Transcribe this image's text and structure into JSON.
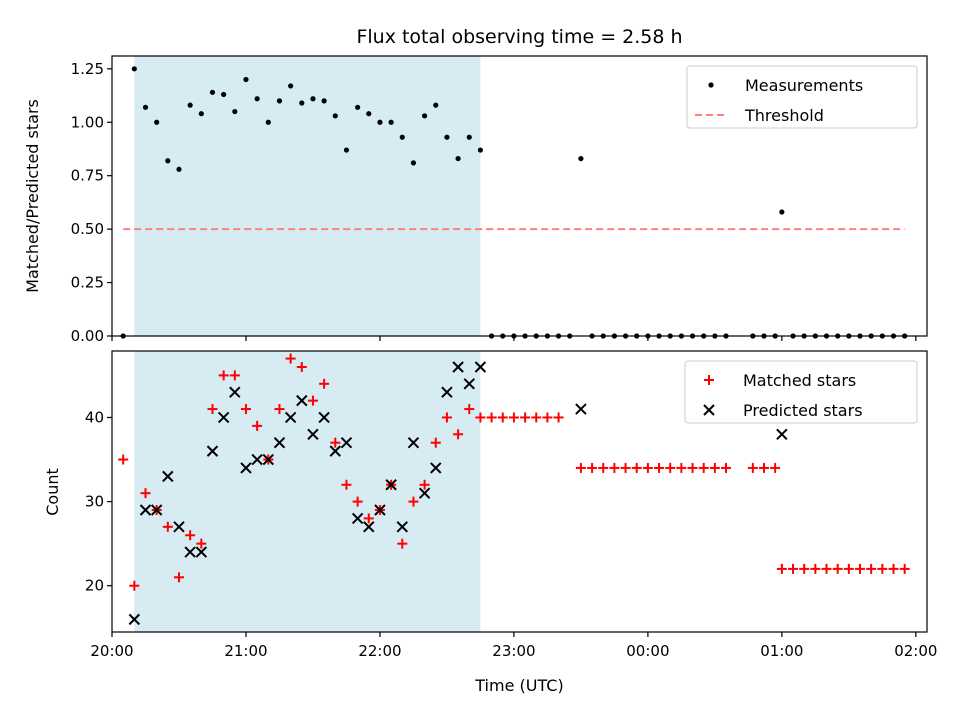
{
  "chart_data": [
    {
      "type": "scatter",
      "title": "Flux total observing time = 2.58 h",
      "xlabel": "",
      "ylabel": "Matched/Predicted stars",
      "xlim": [
        "20:00",
        "02:05"
      ],
      "ylim": [
        0,
        1.31
      ],
      "yticks": [
        "0.00",
        "0.25",
        "0.50",
        "0.75",
        "1.00",
        "1.25"
      ],
      "shaded_span": {
        "start": "20:10",
        "end": "22:45"
      },
      "legend_position": "top-right",
      "series": [
        {
          "name": "Measurements",
          "marker": "dot",
          "color": "#000000",
          "points": [
            [
              "20:05",
              0.0
            ],
            [
              "20:10",
              1.25
            ],
            [
              "20:15",
              1.07
            ],
            [
              "20:20",
              1.0
            ],
            [
              "20:25",
              0.82
            ],
            [
              "20:30",
              0.78
            ],
            [
              "20:35",
              1.08
            ],
            [
              "20:40",
              1.04
            ],
            [
              "20:45",
              1.14
            ],
            [
              "20:50",
              1.13
            ],
            [
              "20:55",
              1.05
            ],
            [
              "21:00",
              1.2
            ],
            [
              "21:05",
              1.11
            ],
            [
              "21:10",
              1.0
            ],
            [
              "21:15",
              1.1
            ],
            [
              "21:20",
              1.17
            ],
            [
              "21:25",
              1.09
            ],
            [
              "21:30",
              1.11
            ],
            [
              "21:35",
              1.1
            ],
            [
              "21:40",
              1.03
            ],
            [
              "21:45",
              0.87
            ],
            [
              "21:50",
              1.07
            ],
            [
              "21:55",
              1.04
            ],
            [
              "22:00",
              1.0
            ],
            [
              "22:05",
              1.0
            ],
            [
              "22:10",
              0.93
            ],
            [
              "22:15",
              0.81
            ],
            [
              "22:20",
              1.03
            ],
            [
              "22:25",
              1.08
            ],
            [
              "22:30",
              0.93
            ],
            [
              "22:35",
              0.83
            ],
            [
              "22:40",
              0.93
            ],
            [
              "22:45",
              0.87
            ],
            [
              "22:50",
              0.0
            ],
            [
              "22:55",
              0.0
            ],
            [
              "23:00",
              0.0
            ],
            [
              "23:05",
              0.0
            ],
            [
              "23:10",
              0.0
            ],
            [
              "23:15",
              0.0
            ],
            [
              "23:20",
              0.0
            ],
            [
              "23:25",
              0.0
            ],
            [
              "23:30",
              0.83
            ],
            [
              "23:35",
              0.0
            ],
            [
              "23:40",
              0.0
            ],
            [
              "23:45",
              0.0
            ],
            [
              "23:50",
              0.0
            ],
            [
              "23:55",
              0.0
            ],
            [
              "00:00",
              0.0
            ],
            [
              "00:05",
              0.0
            ],
            [
              "00:10",
              0.0
            ],
            [
              "00:15",
              0.0
            ],
            [
              "00:20",
              0.0
            ],
            [
              "00:25",
              0.0
            ],
            [
              "00:30",
              0.0
            ],
            [
              "00:35",
              0.0
            ],
            [
              "00:47",
              0.0
            ],
            [
              "00:52",
              0.0
            ],
            [
              "00:57",
              0.0
            ],
            [
              "01:00",
              0.58
            ],
            [
              "01:05",
              0.0
            ],
            [
              "01:10",
              0.0
            ],
            [
              "01:15",
              0.0
            ],
            [
              "01:20",
              0.0
            ],
            [
              "01:25",
              0.0
            ],
            [
              "01:30",
              0.0
            ],
            [
              "01:35",
              0.0
            ],
            [
              "01:40",
              0.0
            ],
            [
              "01:45",
              0.0
            ],
            [
              "01:50",
              0.0
            ],
            [
              "01:55",
              0.0
            ]
          ]
        },
        {
          "name": "Threshold",
          "style": "dashed-line",
          "color": "#ff8080",
          "points": [
            [
              "20:05",
              0.5
            ],
            [
              "01:55",
              0.5
            ]
          ]
        }
      ]
    },
    {
      "type": "scatter",
      "title": "",
      "xlabel": "Time (UTC)",
      "ylabel": "Count",
      "xlim": [
        "20:00",
        "02:05"
      ],
      "ylim": [
        14.5,
        47.9
      ],
      "yticks": [
        "20",
        "30",
        "40"
      ],
      "xticks": [
        "20:00",
        "21:00",
        "22:00",
        "23:00",
        "00:00",
        "01:00",
        "02:00"
      ],
      "shaded_span": {
        "start": "20:10",
        "end": "22:45"
      },
      "legend_position": "top-right",
      "series": [
        {
          "name": "Matched stars",
          "marker": "plus",
          "color": "#ff0000",
          "points": [
            [
              "20:05",
              35
            ],
            [
              "20:10",
              20
            ],
            [
              "20:15",
              31
            ],
            [
              "20:20",
              29
            ],
            [
              "20:25",
              27
            ],
            [
              "20:30",
              21
            ],
            [
              "20:35",
              26
            ],
            [
              "20:40",
              25
            ],
            [
              "20:45",
              41
            ],
            [
              "20:50",
              45
            ],
            [
              "20:55",
              45
            ],
            [
              "21:00",
              41
            ],
            [
              "21:05",
              39
            ],
            [
              "21:10",
              35
            ],
            [
              "21:15",
              41
            ],
            [
              "21:20",
              47
            ],
            [
              "21:25",
              46
            ],
            [
              "21:30",
              42
            ],
            [
              "21:35",
              44
            ],
            [
              "21:40",
              37
            ],
            [
              "21:45",
              32
            ],
            [
              "21:50",
              30
            ],
            [
              "21:55",
              28
            ],
            [
              "22:00",
              29
            ],
            [
              "22:05",
              32
            ],
            [
              "22:10",
              25
            ],
            [
              "22:15",
              30
            ],
            [
              "22:20",
              32
            ],
            [
              "22:25",
              37
            ],
            [
              "22:30",
              40
            ],
            [
              "22:35",
              38
            ],
            [
              "22:40",
              41
            ],
            [
              "22:45",
              40
            ],
            [
              "22:50",
              40
            ],
            [
              "22:55",
              40
            ],
            [
              "23:00",
              40
            ],
            [
              "23:05",
              40
            ],
            [
              "23:10",
              40
            ],
            [
              "23:15",
              40
            ],
            [
              "23:20",
              40
            ],
            [
              "23:30",
              34
            ],
            [
              "23:35",
              34
            ],
            [
              "23:40",
              34
            ],
            [
              "23:45",
              34
            ],
            [
              "23:50",
              34
            ],
            [
              "23:55",
              34
            ],
            [
              "00:00",
              34
            ],
            [
              "00:05",
              34
            ],
            [
              "00:10",
              34
            ],
            [
              "00:15",
              34
            ],
            [
              "00:20",
              34
            ],
            [
              "00:25",
              34
            ],
            [
              "00:30",
              34
            ],
            [
              "00:35",
              34
            ],
            [
              "00:47",
              34
            ],
            [
              "00:52",
              34
            ],
            [
              "00:57",
              34
            ],
            [
              "01:00",
              22
            ],
            [
              "01:05",
              22
            ],
            [
              "01:10",
              22
            ],
            [
              "01:15",
              22
            ],
            [
              "01:20",
              22
            ],
            [
              "01:25",
              22
            ],
            [
              "01:30",
              22
            ],
            [
              "01:35",
              22
            ],
            [
              "01:40",
              22
            ],
            [
              "01:45",
              22
            ],
            [
              "01:50",
              22
            ],
            [
              "01:55",
              22
            ]
          ]
        },
        {
          "name": "Predicted stars",
          "marker": "x",
          "color": "#000000",
          "points": [
            [
              "20:10",
              16
            ],
            [
              "20:15",
              29
            ],
            [
              "20:20",
              29
            ],
            [
              "20:25",
              33
            ],
            [
              "20:30",
              27
            ],
            [
              "20:35",
              24
            ],
            [
              "20:40",
              24
            ],
            [
              "20:45",
              36
            ],
            [
              "20:50",
              40
            ],
            [
              "20:55",
              43
            ],
            [
              "21:00",
              34
            ],
            [
              "21:05",
              35
            ],
            [
              "21:10",
              35
            ],
            [
              "21:15",
              37
            ],
            [
              "21:20",
              40
            ],
            [
              "21:25",
              42
            ],
            [
              "21:30",
              38
            ],
            [
              "21:35",
              40
            ],
            [
              "21:40",
              36
            ],
            [
              "21:45",
              37
            ],
            [
              "21:50",
              28
            ],
            [
              "21:55",
              27
            ],
            [
              "22:00",
              29
            ],
            [
              "22:05",
              32
            ],
            [
              "22:10",
              27
            ],
            [
              "22:15",
              37
            ],
            [
              "22:20",
              31
            ],
            [
              "22:25",
              34
            ],
            [
              "22:30",
              43
            ],
            [
              "22:35",
              46
            ],
            [
              "22:40",
              44
            ],
            [
              "22:45",
              46
            ],
            [
              "23:30",
              41
            ],
            [
              "01:00",
              38
            ]
          ]
        }
      ]
    }
  ]
}
